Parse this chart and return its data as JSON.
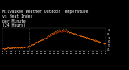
{
  "title": "Milwaukee Weather Outdoor Temperature\nvs Heat Index\nper Minute\n(24 Hours)",
  "title_fontsize": 3.5,
  "bg_color": "#000000",
  "plot_bg_color": "#000000",
  "text_color": "#ffffff",
  "line1_color": "#ff2200",
  "line2_color": "#ff9900",
  "ylabel_right_vals": [
    41,
    51,
    61,
    71,
    81,
    91
  ],
  "ylim": [
    38,
    97
  ],
  "xlim": [
    0,
    1440
  ],
  "vline_x": 370,
  "vline_color": "#888888"
}
